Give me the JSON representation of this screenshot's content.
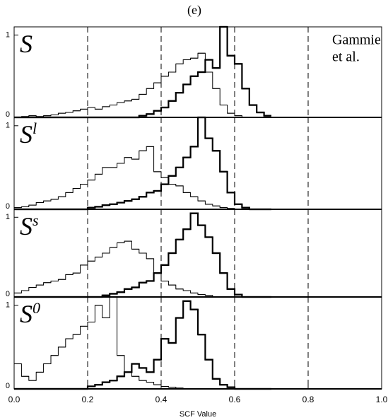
{
  "chart_data": [
    {
      "type": "histogram",
      "title": "(e)",
      "label": "S",
      "annotation_lines": [
        "Gammie",
        "et al."
      ],
      "xlim": [
        0,
        1
      ],
      "ylim": [
        0,
        1.1
      ],
      "yticks": [
        0,
        1
      ],
      "vlines": [
        0.2,
        0.4,
        0.6,
        0.8
      ],
      "bins": [
        0,
        0.02,
        0.04,
        0.06,
        0.08,
        0.1,
        0.12,
        0.14,
        0.16,
        0.18,
        0.2,
        0.22,
        0.24,
        0.26,
        0.28,
        0.3,
        0.32,
        0.34,
        0.36,
        0.38,
        0.4,
        0.42,
        0.44,
        0.46,
        0.48,
        0.5,
        0.52,
        0.54,
        0.56,
        0.58,
        0.6,
        0.62,
        0.64,
        0.66,
        0.68,
        0.7
      ],
      "series": [
        {
          "color": "#000000",
          "width": 1,
          "values": [
            0,
            0.01,
            0.02,
            0.01,
            0.02,
            0.03,
            0.05,
            0.06,
            0.08,
            0.1,
            0.12,
            0.1,
            0.13,
            0.15,
            0.18,
            0.2,
            0.22,
            0.28,
            0.35,
            0.42,
            0.5,
            0.55,
            0.65,
            0.7,
            0.72,
            0.78,
            0.55,
            0.35,
            0.15,
            0.05,
            0.02,
            0,
            0,
            0,
            0
          ]
        },
        {
          "color": "#000000",
          "width": 2.2,
          "values": [
            0,
            0,
            0,
            0,
            0,
            0,
            0,
            0,
            0,
            0,
            0,
            0,
            0,
            0,
            0,
            0,
            0,
            0.02,
            0.04,
            0.08,
            0.12,
            0.2,
            0.3,
            0.4,
            0.5,
            0.55,
            0.7,
            0.6,
            1.1,
            0.75,
            0.65,
            0.35,
            0.15,
            0.06,
            0.02
          ]
        }
      ]
    },
    {
      "type": "histogram",
      "label": "S",
      "label_sup": "l",
      "xlim": [
        0,
        1
      ],
      "ylim": [
        0,
        1.1
      ],
      "yticks": [
        0,
        1
      ],
      "vlines": [
        0.2,
        0.4,
        0.6,
        0.8
      ],
      "bins": [
        0,
        0.02,
        0.04,
        0.06,
        0.08,
        0.1,
        0.12,
        0.14,
        0.16,
        0.18,
        0.2,
        0.22,
        0.24,
        0.26,
        0.28,
        0.3,
        0.32,
        0.34,
        0.36,
        0.38,
        0.4,
        0.42,
        0.44,
        0.46,
        0.48,
        0.5,
        0.52,
        0.54,
        0.56,
        0.58,
        0.6,
        0.62,
        0.64,
        0.66,
        0.68,
        0.7
      ],
      "series": [
        {
          "color": "#000000",
          "width": 1,
          "values": [
            0.02,
            0.03,
            0.05,
            0.08,
            0.1,
            0.12,
            0.15,
            0.2,
            0.25,
            0.3,
            0.35,
            0.42,
            0.5,
            0.5,
            0.55,
            0.62,
            0.6,
            0.7,
            0.75,
            0.45,
            0.38,
            0.3,
            0.28,
            0.2,
            0.15,
            0.1,
            0.06,
            0.04,
            0.02,
            0.01,
            0,
            0,
            0,
            0,
            0
          ]
        },
        {
          "color": "#000000",
          "width": 2.2,
          "values": [
            0,
            0,
            0,
            0,
            0,
            0,
            0,
            0,
            0,
            0,
            0.02,
            0.03,
            0.05,
            0.06,
            0.08,
            0.1,
            0.12,
            0.15,
            0.2,
            0.22,
            0.3,
            0.4,
            0.5,
            0.62,
            0.75,
            1.1,
            0.85,
            0.7,
            0.45,
            0.2,
            0.06,
            0.02,
            0,
            0,
            0
          ]
        }
      ]
    },
    {
      "type": "histogram",
      "label": "S",
      "label_sup": "s",
      "xlim": [
        0,
        1
      ],
      "ylim": [
        0,
        1.1
      ],
      "yticks": [
        0,
        1
      ],
      "vlines": [
        0.2,
        0.4,
        0.6,
        0.8
      ],
      "bins": [
        0,
        0.02,
        0.04,
        0.06,
        0.08,
        0.1,
        0.12,
        0.14,
        0.16,
        0.18,
        0.2,
        0.22,
        0.24,
        0.26,
        0.28,
        0.3,
        0.32,
        0.34,
        0.36,
        0.38,
        0.4,
        0.42,
        0.44,
        0.46,
        0.48,
        0.5,
        0.52,
        0.54,
        0.56,
        0.58,
        0.6,
        0.62,
        0.64,
        0.66,
        0.68,
        0.7
      ],
      "series": [
        {
          "color": "#000000",
          "width": 1,
          "values": [
            0.05,
            0.08,
            0.12,
            0.15,
            0.18,
            0.2,
            0.22,
            0.28,
            0.3,
            0.4,
            0.45,
            0.5,
            0.55,
            0.62,
            0.68,
            0.7,
            0.6,
            0.55,
            0.48,
            0.3,
            0.2,
            0.15,
            0.1,
            0.08,
            0.05,
            0.03,
            0.02,
            0,
            0,
            0,
            0,
            0,
            0,
            0,
            0
          ]
        },
        {
          "color": "#000000",
          "width": 2.2,
          "values": [
            0,
            0,
            0,
            0,
            0,
            0,
            0,
            0,
            0,
            0,
            0,
            0,
            0.02,
            0.04,
            0.06,
            0.1,
            0.12,
            0.18,
            0.2,
            0.3,
            0.4,
            0.55,
            0.72,
            0.85,
            1.05,
            0.9,
            0.75,
            0.55,
            0.3,
            0.1,
            0.03,
            0,
            0,
            0,
            0
          ]
        }
      ]
    },
    {
      "type": "histogram",
      "label": "S",
      "label_sup": "0",
      "xlabel": "SCF Value",
      "xlim": [
        0,
        1
      ],
      "ylim": [
        0,
        1.1
      ],
      "yticks": [
        0,
        1
      ],
      "vlines": [
        0.2,
        0.4,
        0.6,
        0.8
      ],
      "xticks": [
        {
          "value": 0,
          "label": "0.0"
        },
        {
          "value": 0.2,
          "label": "0.2"
        },
        {
          "value": 0.4,
          "label": "0.4"
        },
        {
          "value": 0.6,
          "label": "0.6"
        },
        {
          "value": 0.8,
          "label": "0.8"
        },
        {
          "value": 1,
          "label": "1.0"
        }
      ],
      "bins": [
        0,
        0.02,
        0.04,
        0.06,
        0.08,
        0.1,
        0.12,
        0.14,
        0.16,
        0.18,
        0.2,
        0.22,
        0.24,
        0.26,
        0.28,
        0.3,
        0.32,
        0.34,
        0.36,
        0.38,
        0.4,
        0.42,
        0.44,
        0.46,
        0.48,
        0.5,
        0.52,
        0.54,
        0.56,
        0.58,
        0.6,
        0.62,
        0.64,
        0.66,
        0.68,
        0.7
      ],
      "series": [
        {
          "color": "#000000",
          "width": 1,
          "values": [
            0.3,
            0.15,
            0.1,
            0.2,
            0.3,
            0.4,
            0.5,
            0.6,
            0.65,
            0.75,
            0.8,
            1.0,
            0.85,
            1.1,
            0.4,
            0.2,
            0.15,
            0.1,
            0.08,
            0.05,
            0.03,
            0.02,
            0.01,
            0,
            0,
            0,
            0,
            0,
            0,
            0,
            0,
            0,
            0,
            0,
            0
          ]
        },
        {
          "color": "#000000",
          "width": 2.2,
          "values": [
            0,
            0,
            0,
            0,
            0,
            0,
            0,
            0,
            0,
            0,
            0.03,
            0.05,
            0.08,
            0.1,
            0.15,
            0.2,
            0.3,
            0.25,
            0.2,
            0.35,
            0.6,
            0.55,
            0.85,
            1.05,
            0.95,
            0.65,
            0.35,
            0.12,
            0.05,
            0.02,
            0,
            0,
            0,
            0,
            0
          ]
        }
      ]
    }
  ]
}
